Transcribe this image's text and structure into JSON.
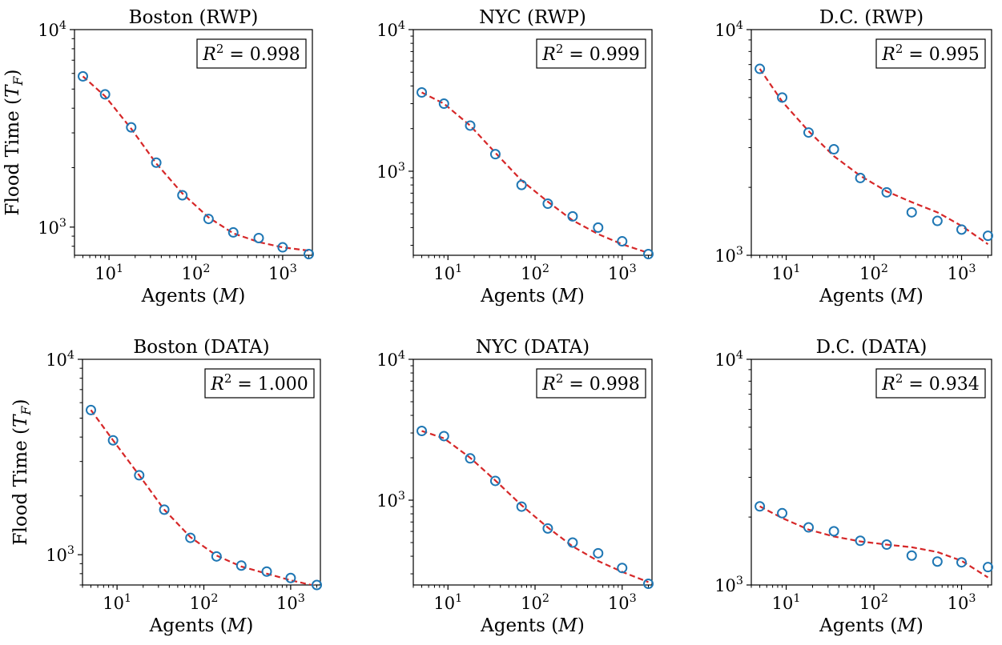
{
  "chart_data": [
    {
      "type": "scatter",
      "title": "Boston (RWP)",
      "xlabel": "Agents (M)",
      "ylabel": "Flood Time (T_F)",
      "xscale": "log",
      "yscale": "log",
      "xlim": [
        4,
        2200
      ],
      "ylim": [
        720,
        10000
      ],
      "xticks": [
        10,
        100,
        1000
      ],
      "xtick_labels": [
        "10^1",
        "10^2",
        "10^3"
      ],
      "yticks": [
        1000,
        10000
      ],
      "ytick_labels": [
        "10^3",
        "10^4"
      ],
      "r2_label": "R^2 = 0.998",
      "legend_position": "top-right",
      "series": [
        {
          "kind": "markers",
          "x": [
            5,
            9,
            18,
            35,
            70,
            140,
            270,
            530,
            1000,
            2000
          ],
          "y": [
            5800,
            4700,
            3200,
            2120,
            1450,
            1100,
            940,
            880,
            790,
            730
          ]
        },
        {
          "kind": "dashed",
          "x": [
            5,
            9,
            18,
            35,
            70,
            140,
            270,
            530,
            1000,
            2000
          ],
          "y": [
            5800,
            4600,
            3150,
            2100,
            1480,
            1120,
            930,
            840,
            790,
            760
          ]
        }
      ]
    },
    {
      "type": "scatter",
      "title": "NYC (RWP)",
      "xlabel": "Agents (M)",
      "ylabel": "",
      "xscale": "log",
      "yscale": "log",
      "xlim": [
        4,
        2200
      ],
      "ylim": [
        255,
        10000
      ],
      "xticks": [
        10,
        100,
        1000
      ],
      "xtick_labels": [
        "10^1",
        "10^2",
        "10^3"
      ],
      "yticks": [
        1000,
        10000
      ],
      "ytick_labels": [
        "10^3",
        "10^4"
      ],
      "r2_label": "R^2 = 0.999",
      "legend_position": "top-right",
      "series": [
        {
          "kind": "markers",
          "x": [
            5,
            9,
            18,
            35,
            70,
            140,
            270,
            530,
            1000,
            2000
          ],
          "y": [
            3600,
            3000,
            2100,
            1320,
            800,
            590,
            480,
            400,
            320,
            260
          ]
        },
        {
          "kind": "dashed",
          "x": [
            5,
            9,
            18,
            35,
            70,
            140,
            270,
            530,
            1000,
            2000
          ],
          "y": [
            3600,
            3000,
            2100,
            1350,
            860,
            610,
            450,
            360,
            305,
            265
          ]
        }
      ]
    },
    {
      "type": "scatter",
      "title": "D.C. (RWP)",
      "xlabel": "Agents (M)",
      "ylabel": "",
      "xscale": "log",
      "yscale": "log",
      "xlim": [
        4,
        2200
      ],
      "ylim": [
        1000,
        10000
      ],
      "xticks": [
        10,
        100,
        1000
      ],
      "xtick_labels": [
        "10^1",
        "10^2",
        "10^3"
      ],
      "yticks": [
        1000,
        10000
      ],
      "ytick_labels": [
        "10^3",
        "10^4"
      ],
      "r2_label": "R^2 = 0.995",
      "legend_position": "top-right",
      "series": [
        {
          "kind": "markers",
          "x": [
            5,
            9,
            18,
            35,
            70,
            140,
            270,
            530,
            1000,
            2000
          ],
          "y": [
            6700,
            5000,
            3500,
            2950,
            2200,
            1900,
            1550,
            1420,
            1300,
            1220
          ]
        },
        {
          "kind": "dashed",
          "x": [
            5,
            9,
            18,
            35,
            70,
            140,
            270,
            530,
            1000,
            2000
          ],
          "y": [
            6700,
            4800,
            3550,
            2750,
            2250,
            1920,
            1720,
            1550,
            1350,
            1120
          ]
        }
      ]
    },
    {
      "type": "scatter",
      "title": "Boston (DATA)",
      "xlabel": "Agents (M)",
      "ylabel": "Flood Time (T_F)",
      "xscale": "log",
      "yscale": "log",
      "xlim": [
        4,
        2200
      ],
      "ylim": [
        700,
        10000
      ],
      "xticks": [
        10,
        100,
        1000
      ],
      "xtick_labels": [
        "10^1",
        "10^2",
        "10^3"
      ],
      "yticks": [
        1000,
        10000
      ],
      "ytick_labels": [
        "10^3",
        "10^4"
      ],
      "r2_label": "R^2 = 1.000",
      "legend_position": "top-right",
      "series": [
        {
          "kind": "markers",
          "x": [
            5,
            9,
            18,
            35,
            70,
            140,
            270,
            530,
            1000,
            2000
          ],
          "y": [
            5500,
            3850,
            2550,
            1700,
            1220,
            980,
            880,
            820,
            760,
            700
          ]
        },
        {
          "kind": "dashed",
          "x": [
            5,
            9,
            18,
            35,
            70,
            140,
            270,
            530,
            1000,
            2000
          ],
          "y": [
            5500,
            3850,
            2550,
            1700,
            1230,
            990,
            870,
            800,
            740,
            690
          ]
        }
      ]
    },
    {
      "type": "scatter",
      "title": "NYC (DATA)",
      "xlabel": "Agents (M)",
      "ylabel": "",
      "xscale": "log",
      "yscale": "log",
      "xlim": [
        4,
        2200
      ],
      "ylim": [
        250,
        10000
      ],
      "xticks": [
        10,
        100,
        1000
      ],
      "xtick_labels": [
        "10^1",
        "10^2",
        "10^3"
      ],
      "yticks": [
        1000,
        10000
      ],
      "ytick_labels": [
        "10^3",
        "10^4"
      ],
      "r2_label": "R^2 = 0.998",
      "legend_position": "top-right",
      "series": [
        {
          "kind": "markers",
          "x": [
            5,
            9,
            18,
            35,
            70,
            140,
            270,
            530,
            1000,
            2000
          ],
          "y": [
            3100,
            2850,
            1980,
            1370,
            900,
            630,
            500,
            420,
            330,
            255
          ]
        },
        {
          "kind": "dashed",
          "x": [
            5,
            9,
            18,
            35,
            70,
            140,
            270,
            530,
            1000,
            2000
          ],
          "y": [
            3100,
            2750,
            2000,
            1380,
            920,
            640,
            470,
            370,
            310,
            262
          ]
        }
      ]
    },
    {
      "type": "scatter",
      "title": "D.C. (DATA)",
      "xlabel": "Agents (M)",
      "ylabel": "",
      "xscale": "log",
      "yscale": "log",
      "xlim": [
        4,
        2200
      ],
      "ylim": [
        1000,
        10000
      ],
      "xticks": [
        10,
        100,
        1000
      ],
      "xtick_labels": [
        "10^1",
        "10^2",
        "10^3"
      ],
      "yticks": [
        1000,
        10000
      ],
      "ytick_labels": [
        "10^3",
        "10^4"
      ],
      "r2_label": "R^2 = 0.934",
      "legend_position": "top-right",
      "series": [
        {
          "kind": "markers",
          "x": [
            5,
            9,
            18,
            35,
            70,
            140,
            270,
            530,
            1000,
            2000
          ],
          "y": [
            2230,
            2080,
            1800,
            1730,
            1570,
            1510,
            1350,
            1270,
            1260,
            1200
          ]
        },
        {
          "kind": "dashed",
          "x": [
            5,
            9,
            18,
            35,
            70,
            140,
            270,
            530,
            1000,
            2000
          ],
          "y": [
            2230,
            1980,
            1760,
            1640,
            1560,
            1510,
            1470,
            1400,
            1280,
            1080
          ]
        }
      ]
    }
  ],
  "colors": {
    "marker": "#1f77b4",
    "fit_line": "#d62728",
    "axes": "#000000"
  }
}
